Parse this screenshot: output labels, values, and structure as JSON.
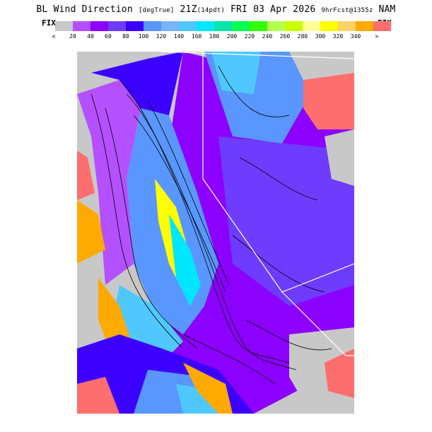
{
  "header": {
    "title_left": "BL Wind Direction",
    "title_units": "[degTrue]",
    "title_time": "21Z",
    "title_local": "(14pdt)",
    "title_date": "FRI 03 Apr 2026",
    "title_fcst": "9hrFcst@1355z",
    "title_model": "NAM"
  },
  "legend": {
    "fix_left": "FIX",
    "fix_right": "FIX",
    "below_symbol": "<",
    "above_symbol": ">",
    "colors": [
      "#c8c8c8",
      "#b450ff",
      "#8c00ff",
      "#6e3cff",
      "#3c00ff",
      "#5a96ff",
      "#78b4ff",
      "#50c8ff",
      "#00e6ff",
      "#00e6aa",
      "#00ff50",
      "#32ff00",
      "#b4ff50",
      "#c8ff00",
      "#ffff96",
      "#ffff00",
      "#ffd264",
      "#ffaa00",
      "#ff6e6e"
    ],
    "ticks": [
      "20",
      "40",
      "60",
      "80",
      "100",
      "120",
      "140",
      "160",
      "180",
      "200",
      "220",
      "240",
      "260",
      "280",
      "300",
      "320",
      "340"
    ]
  },
  "map": {
    "name": "wind-direction-map",
    "colors": {
      "gray": "#c8c8c8",
      "violet": "#b450ff",
      "purple": "#8c00ff",
      "indigo": "#3c00ff",
      "blue": "#5a96ff",
      "sky": "#50c8ff",
      "cyan": "#00e6ff",
      "teal": "#00e6aa",
      "yellow": "#ffff00",
      "orange": "#ffaa00",
      "salmon": "#ff6e6e"
    }
  }
}
